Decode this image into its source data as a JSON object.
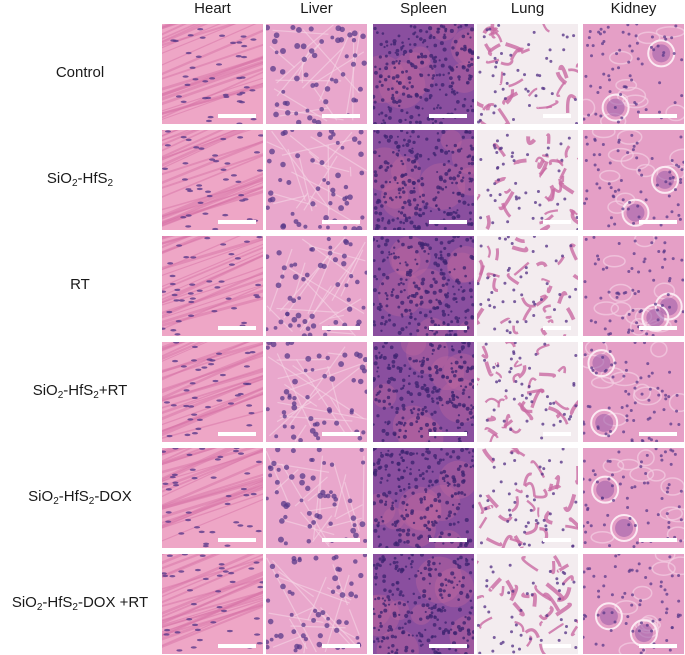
{
  "columns": [
    "Heart",
    "Liver",
    "Spleen",
    "Lung",
    "Kidney"
  ],
  "rows": [
    {
      "parts": [
        {
          "t": "Control"
        }
      ]
    },
    {
      "parts": [
        {
          "t": "SiO"
        },
        {
          "s": "2"
        },
        {
          "t": "-HfS"
        },
        {
          "s": "2"
        }
      ]
    },
    {
      "parts": [
        {
          "t": "RT"
        }
      ]
    },
    {
      "parts": [
        {
          "t": "SiO"
        },
        {
          "s": "2"
        },
        {
          "t": "-HfS"
        },
        {
          "s": "2"
        },
        {
          "t": "+RT"
        }
      ]
    },
    {
      "parts": [
        {
          "t": "SiO"
        },
        {
          "s": "2"
        },
        {
          "t": "-HfS"
        },
        {
          "s": "2"
        },
        {
          "t": "-DOX"
        }
      ]
    },
    {
      "parts": [
        {
          "t": "SiO"
        },
        {
          "s": "2"
        },
        {
          "t": "-HfS"
        },
        {
          "s": "2"
        },
        {
          "t": "-DOX +RT"
        }
      ]
    }
  ],
  "colors": {
    "heart_bg": "#eea6c6",
    "liver_bg": "#e9a7cc",
    "spleen_bg": "#8a4f9f",
    "lung_bg": "#f3ecef",
    "kidney_bg": "#e59fc6",
    "nucleus": "#5a3a8a",
    "eosin": "#d874a8",
    "scale_bar": "#ffffff"
  }
}
